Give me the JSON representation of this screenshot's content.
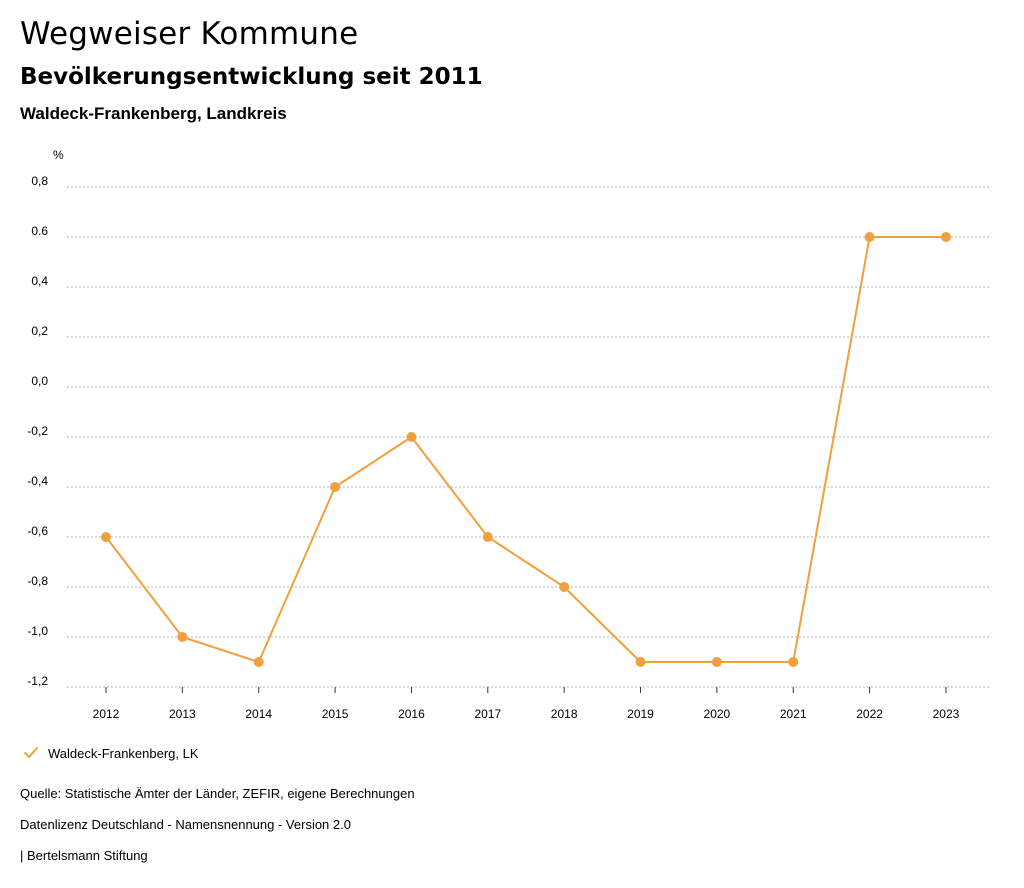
{
  "header": {
    "title": "Wegweiser Kommune",
    "subtitle": "Bevölkerungsentwicklung seit 2011",
    "region": "Waldeck-Frankenberg, Landkreis"
  },
  "chart_data": {
    "type": "line",
    "unit_label": "%",
    "x": [
      "2012",
      "2013",
      "2014",
      "2015",
      "2016",
      "2017",
      "2018",
      "2019",
      "2020",
      "2021",
      "2022",
      "2023"
    ],
    "series": [
      {
        "name": "Waldeck-Frankenberg, LK",
        "values": [
          -0.6,
          -1.0,
          -1.1,
          -0.4,
          -0.2,
          -0.6,
          -0.8,
          -1.1,
          -1.1,
          -1.1,
          0.6,
          0.6
        ],
        "color": "#f0a03c"
      }
    ],
    "y_ticks": [
      0.8,
      0.6,
      0.4,
      0.2,
      0.0,
      -0.2,
      -0.4,
      -0.6,
      -0.8,
      -1.0,
      -1.2
    ],
    "y_tick_labels": [
      "0,8",
      "0.6",
      "0,4",
      "0,2",
      "0,0",
      "-0,2",
      "-0,4",
      "-0,6",
      "-0,8",
      "-1,0",
      "-1,2"
    ],
    "ylim": [
      -1.2,
      0.8
    ],
    "grid": true,
    "legend_position": "bottom-left"
  },
  "legend": {
    "label": "Waldeck-Frankenberg, LK"
  },
  "footer": {
    "source": "Quelle: Statistische Ämter der Länder, ZEFIR, eigene Berechnungen",
    "license": "Datenlizenz Deutschland - Namensnennung - Version 2.0",
    "publisher": "| Bertelsmann Stiftung"
  },
  "colors": {
    "series": "#f0a03c",
    "grid": "#999999"
  }
}
